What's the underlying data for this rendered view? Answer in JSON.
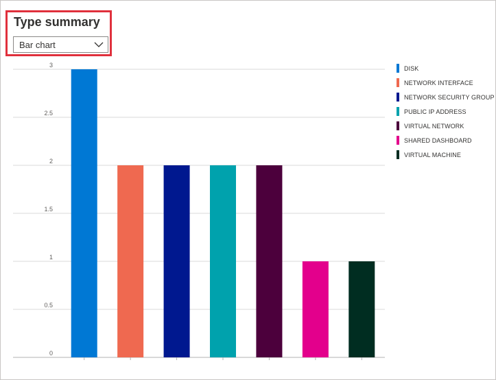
{
  "panel": {
    "title": "Type summary",
    "dropdown_value": "Bar chart"
  },
  "chart_data": {
    "type": "bar",
    "categories": [
      "DISK",
      "NETWORK INTERFACE",
      "NETWORK SECURITY GROUP",
      "PUBLIC IP ADDRESS",
      "VIRTUAL NETWORK",
      "SHARED DASHBOARD",
      "VIRTUAL MACHINE"
    ],
    "values": [
      3,
      2,
      2,
      2,
      2,
      1,
      1
    ],
    "colors": [
      "#0078d4",
      "#ef6950",
      "#00188f",
      "#00a2ad",
      "#4c003c",
      "#e3008c",
      "#002d21"
    ],
    "yticks": [
      "0",
      "0.5",
      "1",
      "1.5",
      "2",
      "2.5",
      "3"
    ],
    "ylim": [
      0,
      3
    ],
    "grid": true,
    "legend_position": "right"
  }
}
